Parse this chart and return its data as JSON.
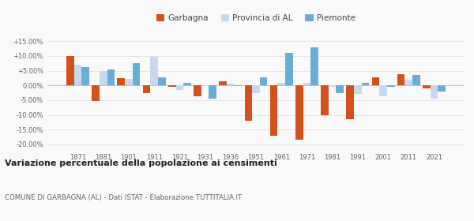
{
  "years": [
    1871,
    1881,
    1901,
    1911,
    1921,
    1931,
    1936,
    1951,
    1961,
    1971,
    1981,
    1991,
    2001,
    2011,
    2021
  ],
  "garbagna": [
    10.0,
    -5.3,
    2.5,
    -2.5,
    -0.5,
    -3.8,
    1.5,
    -12.0,
    -17.0,
    -18.5,
    -10.2,
    -11.5,
    2.8,
    3.8,
    -1.0
  ],
  "provincia": [
    7.0,
    4.8,
    2.3,
    9.8,
    -1.5,
    -0.3,
    0.5,
    -2.5,
    0.8,
    1.0,
    -0.5,
    -3.0,
    -3.8,
    2.0,
    -4.5
  ],
  "piemonte": [
    6.2,
    5.3,
    7.5,
    2.8,
    0.8,
    -4.5,
    -0.3,
    2.8,
    11.0,
    13.0,
    -2.5,
    1.0,
    -0.5,
    3.5,
    -2.0
  ],
  "color_garbagna": "#d2521a",
  "color_provincia": "#c8d8ef",
  "color_piemonte": "#6aaed6",
  "title": "Variazione percentuale della popolazione ai censimenti",
  "subtitle": "COMUNE DI GARBAGNA (AL) - Dati ISTAT - Elaborazione TUTTITALIA.IT",
  "ylim": [
    -22,
    17
  ],
  "yticks": [
    -20.0,
    -15.0,
    -10.0,
    -5.0,
    0.0,
    5.0,
    10.0,
    15.0
  ],
  "background_color": "#f9f9f9",
  "grid_color": "#e0e0e0",
  "bar_width": 0.3
}
